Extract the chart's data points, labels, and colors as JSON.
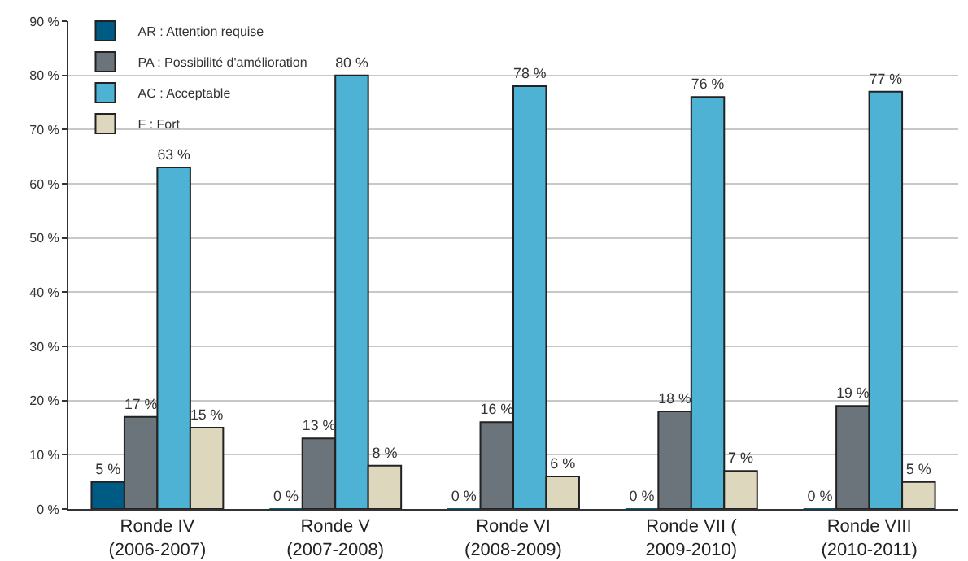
{
  "chart_data": {
    "type": "bar",
    "categories": [
      "Ronde IV\n(2006-2007)",
      "Ronde V\n(2007-2008)",
      "Ronde VI\n(2008-2009)",
      "Ronde VII (\n2009-2010)",
      "Ronde VIII\n(2010-2011)"
    ],
    "series": [
      {
        "name": "AR : Attention requise",
        "color": "#005b84",
        "values": [
          5,
          0,
          0,
          0,
          0
        ],
        "value_labels": [
          "5 %",
          "0 %",
          "0 %",
          "0 %",
          "0 %"
        ]
      },
      {
        "name": "PA : Possibilité d'amélioration",
        "color": "#6b747b",
        "values": [
          17,
          13,
          16,
          18,
          19
        ],
        "value_labels": [
          "17 %",
          "13 %",
          "16 %",
          "18 %",
          "19 %"
        ]
      },
      {
        "name": "AC : Acceptable",
        "color": "#4db2d3",
        "values": [
          63,
          80,
          78,
          76,
          77
        ],
        "value_labels": [
          "63 %",
          "80 %",
          "78 %",
          "76 %",
          "77 %"
        ]
      },
      {
        "name": "F : Fort",
        "color": "#ddd8bd",
        "values": [
          15,
          8,
          6,
          7,
          5
        ],
        "value_labels": [
          "15 %",
          "8 %",
          "6 %",
          "7 %",
          "5 %"
        ]
      }
    ],
    "ylim": [
      0,
      90
    ],
    "yticks": [
      {
        "value": 0,
        "label": "0 %"
      },
      {
        "value": 10,
        "label": "10 %"
      },
      {
        "value": 20,
        "label": "20 %"
      },
      {
        "value": 30,
        "label": "30 %"
      },
      {
        "value": 40,
        "label": "40 %"
      },
      {
        "value": 50,
        "label": "50 %"
      },
      {
        "value": 60,
        "label": "60 %"
      },
      {
        "value": 70,
        "label": "70 %"
      },
      {
        "value": 80,
        "label": "80 %"
      },
      {
        "value": 90,
        "label": "90 %"
      }
    ],
    "grid": "y",
    "legend": "top left"
  }
}
